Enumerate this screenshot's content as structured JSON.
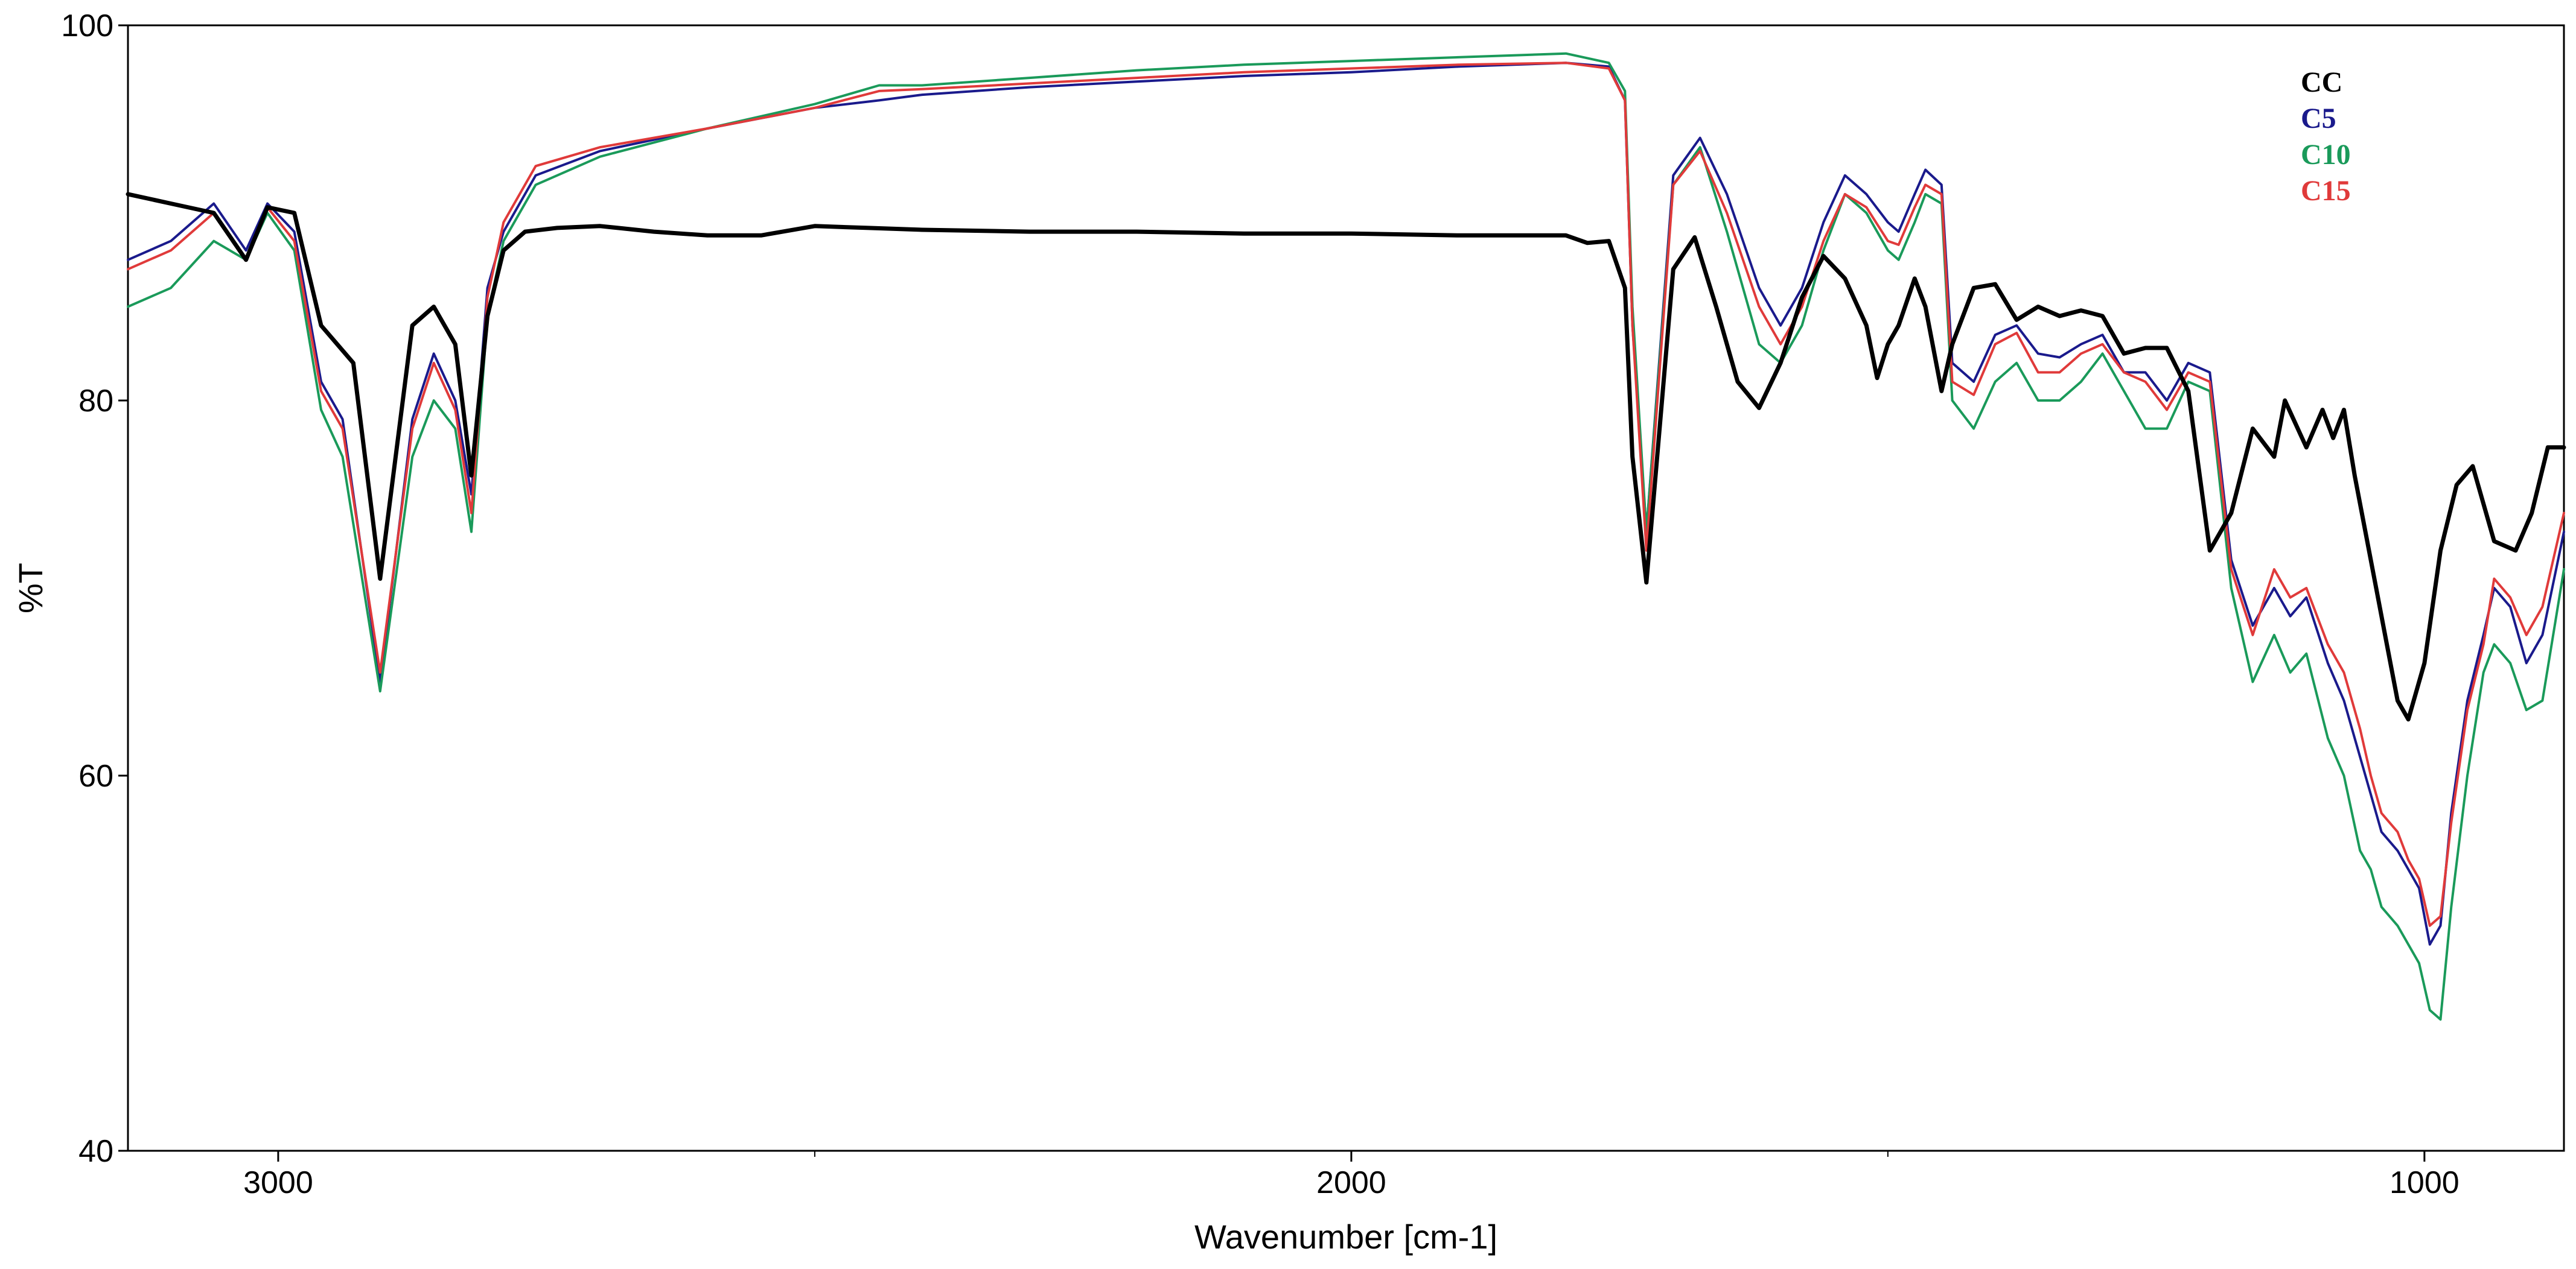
{
  "chart_data": {
    "type": "line",
    "title": "",
    "xlabel": "Wavenumber [cm-1]",
    "ylabel": "%T",
    "xlim": [
      3140,
      870
    ],
    "ylim": [
      40,
      100
    ],
    "x_reversed": true,
    "grid": false,
    "legend_position": "top-right",
    "x_ticks": [
      3000,
      2000,
      1000
    ],
    "x_minor_ticks": [
      3500,
      2500,
      1500
    ],
    "y_ticks": [
      40,
      60,
      80,
      100
    ],
    "series": [
      {
        "name": "CC",
        "color": "#000000",
        "x": [
          3140,
          3100,
          3060,
          3030,
          3010,
          2985,
          2960,
          2930,
          2905,
          2875,
          2855,
          2835,
          2820,
          2805,
          2790,
          2770,
          2740,
          2700,
          2650,
          2600,
          2550,
          2500,
          2450,
          2400,
          2300,
          2200,
          2100,
          2000,
          1900,
          1800,
          1780,
          1760,
          1745,
          1738,
          1725,
          1700,
          1680,
          1660,
          1640,
          1620,
          1600,
          1580,
          1560,
          1540,
          1520,
          1510,
          1500,
          1490,
          1475,
          1465,
          1450,
          1440,
          1420,
          1400,
          1380,
          1360,
          1340,
          1320,
          1300,
          1280,
          1260,
          1240,
          1220,
          1200,
          1180,
          1160,
          1140,
          1130,
          1110,
          1095,
          1085,
          1075,
          1065,
          1055,
          1045,
          1035,
          1025,
          1015,
          1000,
          985,
          970,
          955,
          935,
          915,
          900,
          885,
          870
        ],
        "y": [
          91.0,
          90.5,
          90.0,
          87.5,
          90.3,
          90.0,
          84.0,
          82.0,
          70.5,
          84.0,
          85.0,
          83.0,
          76.0,
          84.5,
          88.0,
          89.0,
          89.2,
          89.3,
          89.0,
          88.8,
          88.8,
          89.3,
          89.2,
          89.1,
          89.0,
          89.0,
          88.9,
          88.9,
          88.8,
          88.8,
          88.4,
          88.5,
          86.0,
          77.0,
          70.3,
          87.0,
          88.7,
          85.0,
          81.0,
          79.6,
          82.0,
          85.5,
          87.7,
          86.5,
          84.0,
          81.2,
          83.0,
          84.0,
          86.5,
          85.0,
          80.5,
          83.0,
          86.0,
          86.2,
          84.3,
          85.0,
          84.5,
          84.8,
          84.5,
          82.5,
          82.8,
          82.8,
          80.5,
          72.0,
          74.0,
          78.5,
          77.0,
          80.0,
          77.5,
          79.5,
          78.0,
          79.5,
          76.0,
          73.0,
          70.0,
          67.0,
          64.0,
          63.0,
          66.0,
          72.0,
          75.5,
          76.5,
          72.5,
          72.0,
          74.0,
          77.5,
          77.5
        ]
      },
      {
        "name": "C5",
        "color": "#1a1a8c",
        "x": [
          3140,
          3100,
          3060,
          3030,
          3010,
          2985,
          2960,
          2940,
          2905,
          2875,
          2855,
          2835,
          2820,
          2805,
          2790,
          2760,
          2700,
          2600,
          2500,
          2440,
          2400,
          2300,
          2200,
          2100,
          2000,
          1900,
          1800,
          1760,
          1745,
          1738,
          1725,
          1700,
          1675,
          1650,
          1620,
          1600,
          1580,
          1560,
          1540,
          1520,
          1500,
          1490,
          1475,
          1465,
          1450,
          1440,
          1420,
          1400,
          1380,
          1360,
          1340,
          1320,
          1300,
          1280,
          1260,
          1240,
          1220,
          1200,
          1180,
          1160,
          1140,
          1125,
          1110,
          1090,
          1075,
          1060,
          1050,
          1040,
          1025,
          1015,
          1005,
          995,
          985,
          975,
          960,
          945,
          935,
          920,
          905,
          890,
          870
        ],
        "y": [
          87.5,
          88.5,
          90.5,
          88.0,
          90.5,
          89.0,
          81.0,
          79.0,
          65.0,
          79.0,
          82.5,
          80.0,
          75.0,
          86.0,
          89.0,
          92.0,
          93.3,
          94.5,
          95.6,
          96.0,
          96.3,
          96.7,
          97.0,
          97.3,
          97.5,
          97.8,
          98.0,
          97.8,
          96.0,
          84.0,
          73.0,
          92.0,
          94.0,
          91.0,
          86.0,
          84.0,
          86.0,
          89.5,
          92.0,
          91.0,
          89.5,
          89.0,
          91.0,
          92.3,
          91.5,
          82.0,
          81.0,
          83.5,
          84.0,
          82.5,
          82.3,
          83.0,
          83.5,
          81.5,
          81.5,
          80.0,
          82.0,
          81.5,
          71.5,
          68.0,
          70.0,
          68.5,
          69.5,
          66.0,
          64.0,
          61.0,
          59.0,
          57.0,
          56.0,
          55.0,
          54.0,
          51.0,
          52.0,
          58.0,
          64.0,
          67.5,
          70.0,
          69.0,
          66.0,
          67.5,
          73.0
        ]
      },
      {
        "name": "C10",
        "color": "#1a9a5a",
        "x": [
          3140,
          3100,
          3060,
          3030,
          3010,
          2985,
          2960,
          2940,
          2905,
          2875,
          2855,
          2835,
          2820,
          2805,
          2790,
          2760,
          2700,
          2600,
          2500,
          2440,
          2400,
          2300,
          2200,
          2100,
          2000,
          1900,
          1800,
          1760,
          1745,
          1738,
          1725,
          1700,
          1675,
          1650,
          1620,
          1600,
          1580,
          1560,
          1540,
          1520,
          1500,
          1490,
          1475,
          1465,
          1450,
          1440,
          1420,
          1400,
          1380,
          1360,
          1340,
          1320,
          1300,
          1280,
          1260,
          1240,
          1220,
          1200,
          1180,
          1160,
          1140,
          1125,
          1110,
          1090,
          1075,
          1060,
          1050,
          1040,
          1025,
          1015,
          1005,
          995,
          985,
          975,
          960,
          945,
          935,
          920,
          905,
          890,
          870
        ],
        "y": [
          85.0,
          86.0,
          88.5,
          87.5,
          90.0,
          88.0,
          79.5,
          77.0,
          64.5,
          77.0,
          80.0,
          78.5,
          73.0,
          84.5,
          88.5,
          91.5,
          93.0,
          94.5,
          95.8,
          96.8,
          96.8,
          97.2,
          97.6,
          97.9,
          98.1,
          98.3,
          98.5,
          98.0,
          96.5,
          85.0,
          73.0,
          91.5,
          93.5,
          89.0,
          83.0,
          82.0,
          84.0,
          88.0,
          91.0,
          90.0,
          88.0,
          87.5,
          89.5,
          91.0,
          90.5,
          80.0,
          78.5,
          81.0,
          82.0,
          80.0,
          80.0,
          81.0,
          82.5,
          80.5,
          78.5,
          78.5,
          81.0,
          80.5,
          70.0,
          65.0,
          67.5,
          65.5,
          66.5,
          62.0,
          60.0,
          56.0,
          55.0,
          53.0,
          52.0,
          51.0,
          50.0,
          47.5,
          47.0,
          53.0,
          60.0,
          65.5,
          67.0,
          66.0,
          63.5,
          64.0,
          71.0
        ]
      },
      {
        "name": "C15",
        "color": "#e03a3a",
        "x": [
          3140,
          3100,
          3060,
          3030,
          3010,
          2985,
          2960,
          2940,
          2905,
          2875,
          2855,
          2835,
          2820,
          2805,
          2790,
          2760,
          2700,
          2600,
          2500,
          2440,
          2400,
          2300,
          2200,
          2100,
          2000,
          1900,
          1800,
          1760,
          1745,
          1738,
          1725,
          1700,
          1675,
          1650,
          1620,
          1600,
          1580,
          1560,
          1540,
          1520,
          1500,
          1490,
          1475,
          1465,
          1450,
          1440,
          1420,
          1400,
          1380,
          1360,
          1340,
          1320,
          1300,
          1280,
          1260,
          1240,
          1220,
          1200,
          1180,
          1160,
          1140,
          1125,
          1110,
          1090,
          1075,
          1060,
          1050,
          1040,
          1025,
          1015,
          1005,
          995,
          985,
          975,
          960,
          945,
          935,
          920,
          905,
          890,
          870
        ],
        "y": [
          87.0,
          88.0,
          90.0,
          87.5,
          90.3,
          88.5,
          80.5,
          78.5,
          65.5,
          78.5,
          82.0,
          79.5,
          74.0,
          85.5,
          89.5,
          92.5,
          93.5,
          94.5,
          95.6,
          96.5,
          96.6,
          96.9,
          97.2,
          97.5,
          97.7,
          97.9,
          98.0,
          97.7,
          96.0,
          84.0,
          72.0,
          91.5,
          93.3,
          90.0,
          85.0,
          83.0,
          85.0,
          88.5,
          91.0,
          90.3,
          88.5,
          88.3,
          90.3,
          91.5,
          91.0,
          81.0,
          80.3,
          83.0,
          83.6,
          81.5,
          81.5,
          82.5,
          83.0,
          81.5,
          81.0,
          79.5,
          81.5,
          81.0,
          71.0,
          67.5,
          71.0,
          69.5,
          70.0,
          67.0,
          65.5,
          62.5,
          60.0,
          58.0,
          57.0,
          55.5,
          54.5,
          52.0,
          52.5,
          57.5,
          63.5,
          67.0,
          70.5,
          69.5,
          67.5,
          69.0,
          74.0
        ]
      }
    ]
  }
}
